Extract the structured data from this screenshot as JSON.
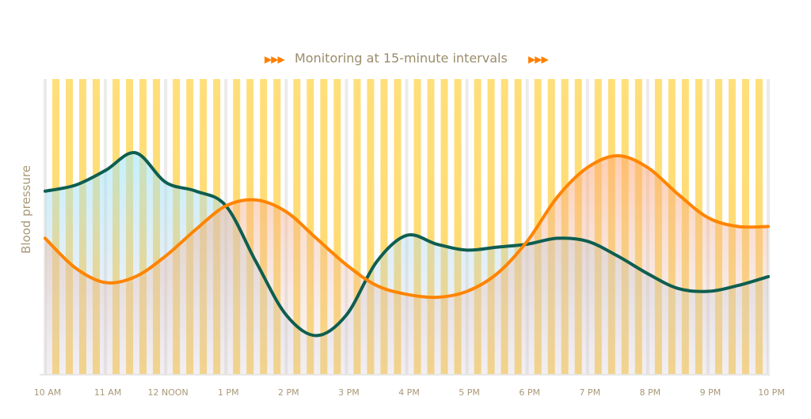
{
  "chart_data": {
    "type": "area",
    "title": "Monitoring at 15-minute intervals",
    "title_decoration_icon": "triple-right-triangle-icon",
    "xlabel": "",
    "ylabel": "Blood pressure",
    "x_tick_labels": [
      "10 AM",
      "11 AM",
      "12 NOON",
      "1 PM",
      "2 PM",
      "3 PM",
      "4 PM",
      "5 PM",
      "6 PM",
      "7 PM",
      "8 PM",
      "9 PM",
      "10 PM"
    ],
    "x": [
      "10:00",
      "10:30",
      "11:00",
      "11:30",
      "12:00",
      "12:30",
      "13:00",
      "13:30",
      "14:00",
      "14:30",
      "15:00",
      "15:30",
      "16:00",
      "16:30",
      "17:00",
      "17:30",
      "18:00",
      "18:30",
      "19:00",
      "19:30",
      "20:00",
      "20:30",
      "21:00",
      "21:30",
      "22:00"
    ],
    "ylim": [
      0,
      100
    ],
    "y_ticks_shown": false,
    "interval_bars": "15-minute",
    "series": [
      {
        "color": "#0e5e50",
        "fill": "#bfeefa",
        "values": [
          62,
          64,
          69,
          75,
          65,
          62,
          57,
          38,
          20,
          13,
          20,
          38,
          47,
          44,
          42,
          43,
          44,
          46,
          45,
          40,
          34,
          29,
          28,
          30,
          33
        ]
      },
      {
        "color": "#ff8400",
        "fill": "#ffc9a8",
        "values": [
          46,
          36,
          31,
          33,
          40,
          49,
          57,
          59,
          55,
          46,
          37,
          30,
          27,
          26,
          28,
          34,
          45,
          60,
          70,
          74,
          70,
          61,
          53,
          50,
          50
        ]
      }
    ],
    "colors": {
      "interval_bar": "#ffdf7a",
      "hour_line": "#ecebea",
      "label": "#a89878",
      "accent": "#ff7f00"
    }
  }
}
